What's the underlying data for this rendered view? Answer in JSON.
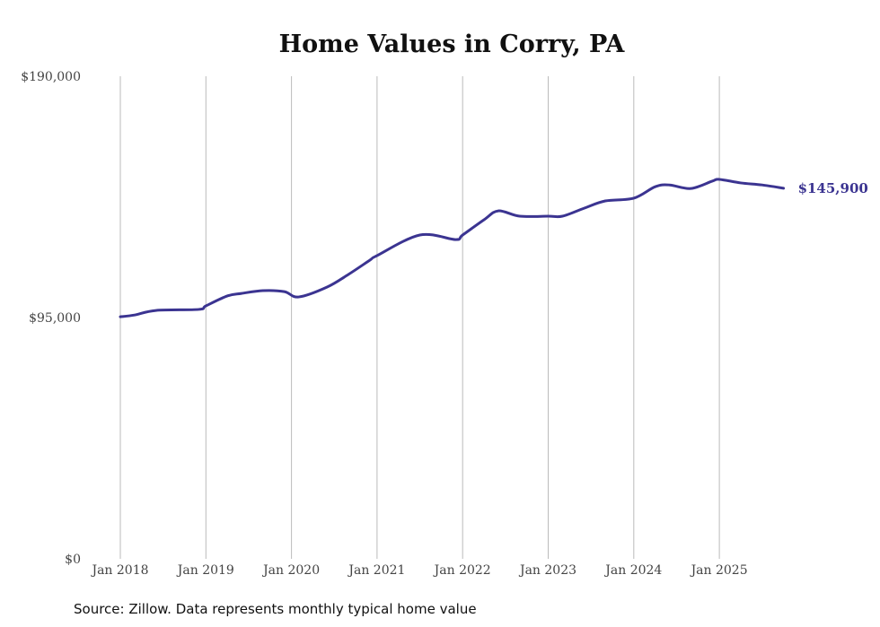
{
  "chart_data": {
    "type": "line",
    "title": "Home Values in Corry, PA",
    "xlabel": "",
    "ylabel": "",
    "ylim": [
      0,
      190000
    ],
    "y_ticks": [
      {
        "value": 0,
        "label": "$0"
      },
      {
        "value": 95000,
        "label": "$95,000"
      },
      {
        "value": 190000,
        "label": "$190,000"
      }
    ],
    "x_ticks": [
      "Jan 2018",
      "Jan 2019",
      "Jan 2020",
      "Jan 2021",
      "Jan 2022",
      "Jan 2023",
      "Jan 2024",
      "Jan 2025"
    ],
    "grid": "vertical",
    "series": [
      {
        "name": "Typical home value",
        "color": "#3b3491",
        "x": [
          "2018-01",
          "2018-03",
          "2018-06",
          "2018-12",
          "2019-01",
          "2019-04",
          "2019-06",
          "2019-09",
          "2019-12",
          "2020-02",
          "2020-06",
          "2020-09",
          "2020-12",
          "2021-01",
          "2021-07",
          "2021-12",
          "2022-01",
          "2022-04",
          "2022-06",
          "2022-09",
          "2023-01",
          "2023-03",
          "2023-06",
          "2023-09",
          "2024-01",
          "2024-04",
          "2024-06",
          "2024-09",
          "2024-12",
          "2025-01",
          "2025-04",
          "2025-07",
          "2025-10"
        ],
        "values": [
          95300,
          96000,
          97800,
          98200,
          99600,
          103500,
          104500,
          105600,
          105200,
          103100,
          107000,
          112000,
          117600,
          119400,
          127500,
          125700,
          127500,
          133500,
          137000,
          134900,
          134900,
          134900,
          138000,
          140900,
          142000,
          146500,
          147200,
          145800,
          148700,
          149400,
          148000,
          147200,
          145900
        ]
      }
    ],
    "end_label": "$145,900",
    "source": "Source: Zillow. Data represents monthly typical home value"
  }
}
